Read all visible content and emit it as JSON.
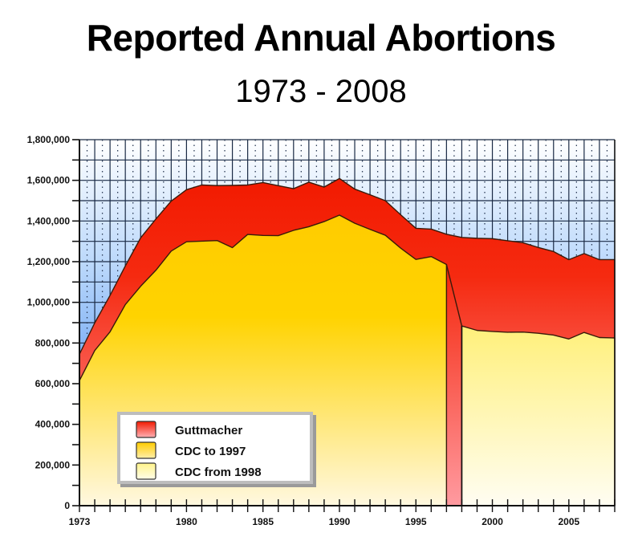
{
  "chart_data": {
    "type": "area",
    "title": "Reported Annual Abortions",
    "subtitle": "1973 - 2008",
    "xlabel": "",
    "ylabel": "",
    "xlim": [
      1973,
      2008
    ],
    "ylim": [
      0,
      1800000
    ],
    "grid": true,
    "legend_position": "bottom-left",
    "x_tick_labels": [
      "1973",
      "1980",
      "1985",
      "1990",
      "1995",
      "2000",
      "2005"
    ],
    "x_tick_values": [
      1973,
      1980,
      1985,
      1990,
      1995,
      2000,
      2005
    ],
    "y_tick_labels": [
      "0",
      "200,000",
      "400,000",
      "600,000",
      "800,000",
      "1,000,000",
      "1,200,000",
      "1,400,000",
      "1,600,000",
      "1,800,000"
    ],
    "y_tick_values": [
      0,
      200000,
      400000,
      600000,
      800000,
      1000000,
      1200000,
      1400000,
      1600000,
      1800000
    ],
    "x": [
      1973,
      1974,
      1975,
      1976,
      1977,
      1978,
      1979,
      1980,
      1981,
      1982,
      1983,
      1984,
      1985,
      1986,
      1987,
      1988,
      1989,
      1990,
      1991,
      1992,
      1993,
      1994,
      1995,
      1996,
      1997,
      1998,
      1999,
      2000,
      2001,
      2002,
      2003,
      2004,
      2005,
      2006,
      2007,
      2008
    ],
    "series": [
      {
        "name": "Guttmacher",
        "color_top": "#f21a00",
        "color_bottom": "#ff9aa0",
        "x": [
          1973,
          1974,
          1975,
          1976,
          1977,
          1978,
          1979,
          1980,
          1981,
          1982,
          1983,
          1984,
          1985,
          1986,
          1987,
          1988,
          1989,
          1990,
          1991,
          1992,
          1993,
          1994,
          1995,
          1996,
          1997,
          1998,
          1999,
          2000,
          2001,
          2002,
          2003,
          2004,
          2005,
          2006,
          2007,
          2008
        ],
        "values": [
          745000,
          899000,
          1034000,
          1179000,
          1317000,
          1410000,
          1498000,
          1554000,
          1577000,
          1574000,
          1575000,
          1577000,
          1589000,
          1574000,
          1559000,
          1591000,
          1567000,
          1609000,
          1557000,
          1529000,
          1500000,
          1431000,
          1364000,
          1360000,
          1335000,
          1319000,
          1315000,
          1313000,
          1303000,
          1293000,
          1270000,
          1250000,
          1210000,
          1240000,
          1210000,
          1210000
        ]
      },
      {
        "name": "CDC to 1997",
        "color_top": "#ffcc00",
        "color_bottom": "#fff3c0",
        "x": [
          1973,
          1974,
          1975,
          1976,
          1977,
          1978,
          1979,
          1980,
          1981,
          1982,
          1983,
          1984,
          1985,
          1986,
          1987,
          1988,
          1989,
          1990,
          1991,
          1992,
          1993,
          1994,
          1995,
          1996,
          1997
        ],
        "values": [
          615000,
          763000,
          855000,
          989000,
          1079000,
          1158000,
          1252000,
          1298000,
          1301000,
          1304000,
          1269000,
          1334000,
          1329000,
          1328000,
          1354000,
          1372000,
          1397000,
          1429000,
          1389000,
          1359000,
          1330000,
          1267000,
          1211000,
          1225000,
          1186000
        ]
      },
      {
        "name": "CDC from 1998",
        "color_top": "#fff38a",
        "color_bottom": "#fffdf0",
        "x": [
          1998,
          1999,
          2000,
          2001,
          2002,
          2003,
          2004,
          2005,
          2006,
          2007,
          2008
        ],
        "values": [
          884000,
          862000,
          857000,
          853000,
          854000,
          848000,
          839000,
          820000,
          852000,
          827000,
          825000
        ]
      }
    ]
  }
}
